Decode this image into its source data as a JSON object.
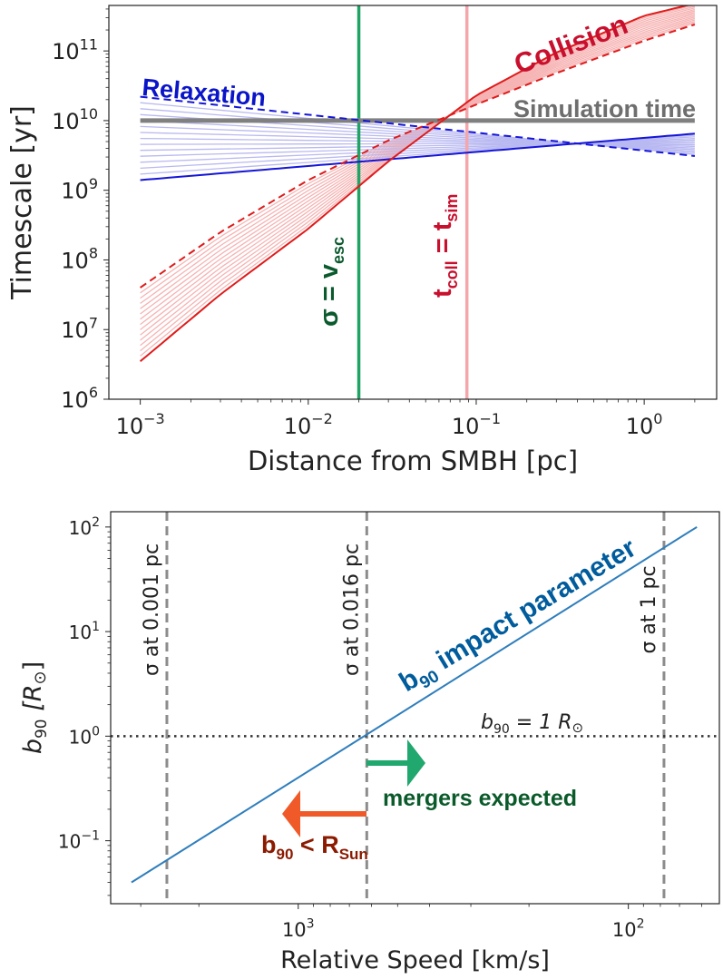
{
  "chart_data": [
    {
      "type": "line",
      "scale": {
        "x": "log",
        "y": "log"
      },
      "xlabel": "Distance from SMBH [pc]",
      "ylabel": "Timescale [yr]",
      "xlim": [
        0.00065,
        2.7
      ],
      "ylim": [
        1000000.0,
        450000000000.0
      ],
      "xticks": [
        {
          "value": 0.001,
          "base": "10",
          "exp": "−3"
        },
        {
          "value": 0.01,
          "base": "10",
          "exp": "−2"
        },
        {
          "value": 0.1,
          "base": "10",
          "exp": "−1"
        },
        {
          "value": 1,
          "base": "10",
          "exp": "0"
        }
      ],
      "yticks": [
        {
          "value": 1000000.0,
          "base": "10",
          "exp": "6"
        },
        {
          "value": 10000000.0,
          "base": "10",
          "exp": "7"
        },
        {
          "value": 100000000.0,
          "base": "10",
          "exp": "8"
        },
        {
          "value": 1000000000.0,
          "base": "10",
          "exp": "9"
        },
        {
          "value": 10000000000.0,
          "base": "10",
          "exp": "10"
        },
        {
          "value": 100000000000.0,
          "base": "10",
          "exp": "11"
        }
      ],
      "series": [
        {
          "name": "Relaxation (solid)",
          "color": "#1515d8",
          "dash": false,
          "x": [
            0.001,
            2
          ],
          "y": [
            1400000000.0,
            6500000000.0
          ]
        },
        {
          "name": "Relaxation (dashed)",
          "color": "#1515d8",
          "dash": true,
          "x": [
            0.001,
            2
          ],
          "y": [
            22000000000.0,
            3100000000.0
          ]
        },
        {
          "name": "Collision (solid)",
          "color": "#e01b1b",
          "dash": false,
          "x": [
            0.001,
            0.003,
            0.01,
            0.03,
            0.1,
            0.3,
            1,
            2
          ],
          "y": [
            3500000.0,
            32000000.0,
            280000000.0,
            2600000000.0,
            23000000000.0,
            95000000000.0,
            320000000000.0,
            480000000000.0
          ]
        },
        {
          "name": "Collision (dashed)",
          "color": "#e01b1b",
          "dash": true,
          "x": [
            0.001,
            0.003,
            0.01,
            0.03,
            0.1,
            0.3,
            1,
            2
          ],
          "y": [
            40000000.0,
            250000000.0,
            1400000000.0,
            5200000000.0,
            17000000000.0,
            48000000000.0,
            140000000000.0,
            240000000000.0
          ]
        },
        {
          "name": "Simulation time",
          "color": "#808080",
          "dash": false,
          "x": [
            0.001,
            2
          ],
          "y": [
            10000000000.0,
            10000000000.0
          ]
        }
      ],
      "vlines": [
        {
          "name": "sigma = v_esc",
          "x": 0.02,
          "color": "#21a366"
        },
        {
          "name": "t_coll = t_sim",
          "x": 0.088,
          "color": "#f4a6ad"
        }
      ],
      "annotations": {
        "collision": "Collision",
        "relaxation": "Relaxation",
        "simulation_time": "Simulation time",
        "sigma": "σ = v",
        "sigma_sub": "esc",
        "tcoll_t": "t",
        "tcoll_sub1": "coll",
        "tcoll_eq": " = t",
        "tcoll_sub2": "sim"
      }
    },
    {
      "type": "line",
      "scale": {
        "x": "log-inverted",
        "y": "log"
      },
      "xlabel": "Relative Speed [km/s]",
      "ylabel_main": "b",
      "ylabel_sub": "90",
      "ylabel_rest": " [R",
      "ylabel_sym": "⊙",
      "ylabel_close": "]",
      "xlim": [
        3700,
        53
      ],
      "ylim": [
        0.025,
        140
      ],
      "xticks": [
        {
          "value": 1000,
          "base": "10",
          "exp": "3"
        },
        {
          "value": 100,
          "base": "10",
          "exp": "2"
        }
      ],
      "yticks": [
        {
          "value": 0.1,
          "base": "10",
          "exp": "−1"
        },
        {
          "value": 1,
          "base": "10",
          "exp": "0"
        },
        {
          "value": 10,
          "base": "10",
          "exp": "1"
        },
        {
          "value": 100,
          "base": "10",
          "exp": "2"
        }
      ],
      "series": [
        {
          "name": "b90 impact parameter",
          "color": "#2f7ebc",
          "x": [
            3200,
            62
          ],
          "y": [
            0.04,
            100
          ]
        }
      ],
      "vlines": [
        {
          "label": "σ at 0.001 pc",
          "x": 2500
        },
        {
          "label": "σ at 0.016 pc",
          "x": 620
        },
        {
          "label": "σ at 1 pc",
          "x": 78
        }
      ],
      "hline": {
        "y": 1,
        "label_main": "b",
        "label_sub": "90",
        "label_rest": " = 1 R",
        "label_sym": "⊙"
      },
      "annotations": {
        "impact_main": "b",
        "impact_sub": "90",
        "impact_rest": " impact parameter",
        "mergers": "mergers expected",
        "bsun_main": "b",
        "bsun_sub": "90",
        "bsun_rest": " < R",
        "bsun_sub2": "Sun"
      },
      "colors": {
        "merger_arrow": "#21a86e",
        "merger_text": "#0a5a2a",
        "bsun_arrow": "#f05a28",
        "bsun_text": "#8b1a00"
      }
    }
  ]
}
